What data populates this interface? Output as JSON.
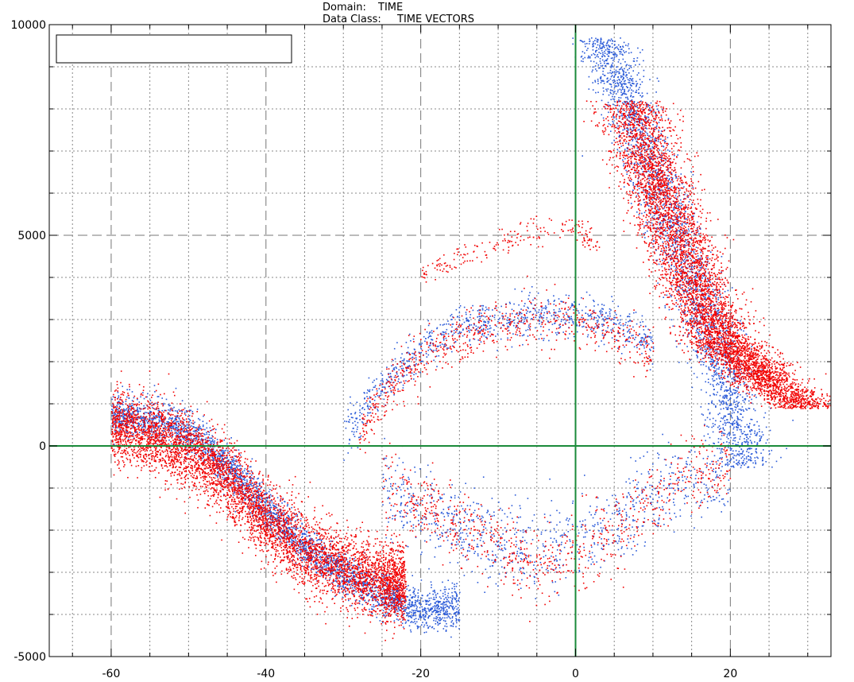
{
  "header": {
    "domain_label": "Domain:",
    "domain_value": "TIME",
    "data_class_label": "Data Class:",
    "data_class_value": "TIME VECTORS"
  },
  "chart_data": {
    "type": "scatter",
    "title": "",
    "xlabel": "",
    "ylabel": "",
    "xlim": [
      -68,
      33
    ],
    "ylim": [
      -5000,
      10000
    ],
    "x_ticks": [
      -60,
      -40,
      -20,
      0,
      20
    ],
    "x_tick_labels": [
      "-60",
      "-40",
      "-20",
      "0",
      "20"
    ],
    "y_ticks": [
      -5000,
      0,
      5000,
      10000
    ],
    "y_tick_labels": [
      "-5000",
      "0",
      "5000",
      "10000"
    ],
    "x_minor_grid_step": 5,
    "y_minor_grid_step": 1000,
    "grid": true,
    "reference_lines": {
      "x": 0,
      "y": 0,
      "color": "#1a8a3a"
    },
    "legend_box": {
      "position": "top-left",
      "text": ""
    },
    "series": [
      {
        "color": "#2a5ad8",
        "clusters": [
          {
            "points": [
              [
                -60,
                700
              ],
              [
                -55,
                650
              ],
              [
                -50,
                400
              ],
              [
                -45,
                -500
              ],
              [
                -40,
                -1500
              ],
              [
                -35,
                -2400
              ],
              [
                -30,
                -3000
              ],
              [
                -25,
                -3500
              ],
              [
                -20,
                -3900
              ],
              [
                -15,
                -3800
              ]
            ],
            "spread_y": 500,
            "density": 3000
          },
          {
            "points": [
              [
                3,
                9700
              ],
              [
                6,
                8500
              ],
              [
                9,
                7000
              ],
              [
                12,
                5500
              ],
              [
                15,
                4000
              ],
              [
                18,
                2500
              ],
              [
                20,
                1000
              ],
              [
                22,
                -500
              ]
            ],
            "spread_x": 3.5,
            "density": 2600
          },
          {
            "points": [
              [
                -25,
                -1000
              ],
              [
                -20,
                -1500
              ],
              [
                -15,
                -1900
              ],
              [
                -10,
                -2200
              ],
              [
                -5,
                -2400
              ],
              [
                0,
                -2300
              ],
              [
                5,
                -1800
              ],
              [
                10,
                -1200
              ],
              [
                15,
                -800
              ],
              [
                20,
                -600
              ]
            ],
            "spread_y": 1000,
            "density": 900
          },
          {
            "points": [
              [
                -30,
                300
              ],
              [
                -25,
                1500
              ],
              [
                -20,
                2300
              ],
              [
                -15,
                2800
              ],
              [
                -10,
                3000
              ],
              [
                -5,
                3100
              ],
              [
                0,
                3100
              ],
              [
                5,
                2900
              ],
              [
                10,
                2400
              ]
            ],
            "spread_y": 500,
            "density": 900
          }
        ]
      },
      {
        "color": "#f20000",
        "clusters": [
          {
            "points": [
              [
                -60,
                500
              ],
              [
                -55,
                300
              ],
              [
                -50,
                -100
              ],
              [
                -45,
                -800
              ],
              [
                -40,
                -1800
              ],
              [
                -35,
                -2500
              ],
              [
                -30,
                -2900
              ],
              [
                -25,
                -3200
              ],
              [
                -22,
                -3300
              ]
            ],
            "spread_y": 900,
            "density": 5200
          },
          {
            "points": [
              [
                7,
                8200
              ],
              [
                9,
                7000
              ],
              [
                11,
                6000
              ],
              [
                13,
                5000
              ],
              [
                15,
                4000
              ],
              [
                17,
                3200
              ],
              [
                19,
                2500
              ],
              [
                22,
                2000
              ],
              [
                25,
                1500
              ],
              [
                30,
                900
              ]
            ],
            "spread_x": 4.5,
            "density": 5200
          },
          {
            "points": [
              [
                -25,
                -800
              ],
              [
                -20,
                -1300
              ],
              [
                -15,
                -1900
              ],
              [
                -10,
                -2400
              ],
              [
                -5,
                -2900
              ],
              [
                0,
                -2700
              ],
              [
                5,
                -2000
              ],
              [
                10,
                -1300
              ],
              [
                15,
                -700
              ],
              [
                20,
                -500
              ]
            ],
            "spread_y": 900,
            "density": 800
          },
          {
            "points": [
              [
                -28,
                300
              ],
              [
                -24,
                1400
              ],
              [
                -20,
                2100
              ],
              [
                -15,
                2600
              ],
              [
                -10,
                2900
              ],
              [
                -5,
                3000
              ],
              [
                0,
                3000
              ],
              [
                5,
                2700
              ],
              [
                10,
                2200
              ]
            ],
            "spread_y": 600,
            "density": 700
          },
          {
            "points": [
              [
                -20,
                4000
              ],
              [
                -15,
                4500
              ],
              [
                -10,
                4800
              ],
              [
                -5,
                5100
              ],
              [
                0,
                5200
              ],
              [
                3,
                4700
              ]
            ],
            "spread_y": 300,
            "density": 200
          }
        ]
      }
    ]
  }
}
